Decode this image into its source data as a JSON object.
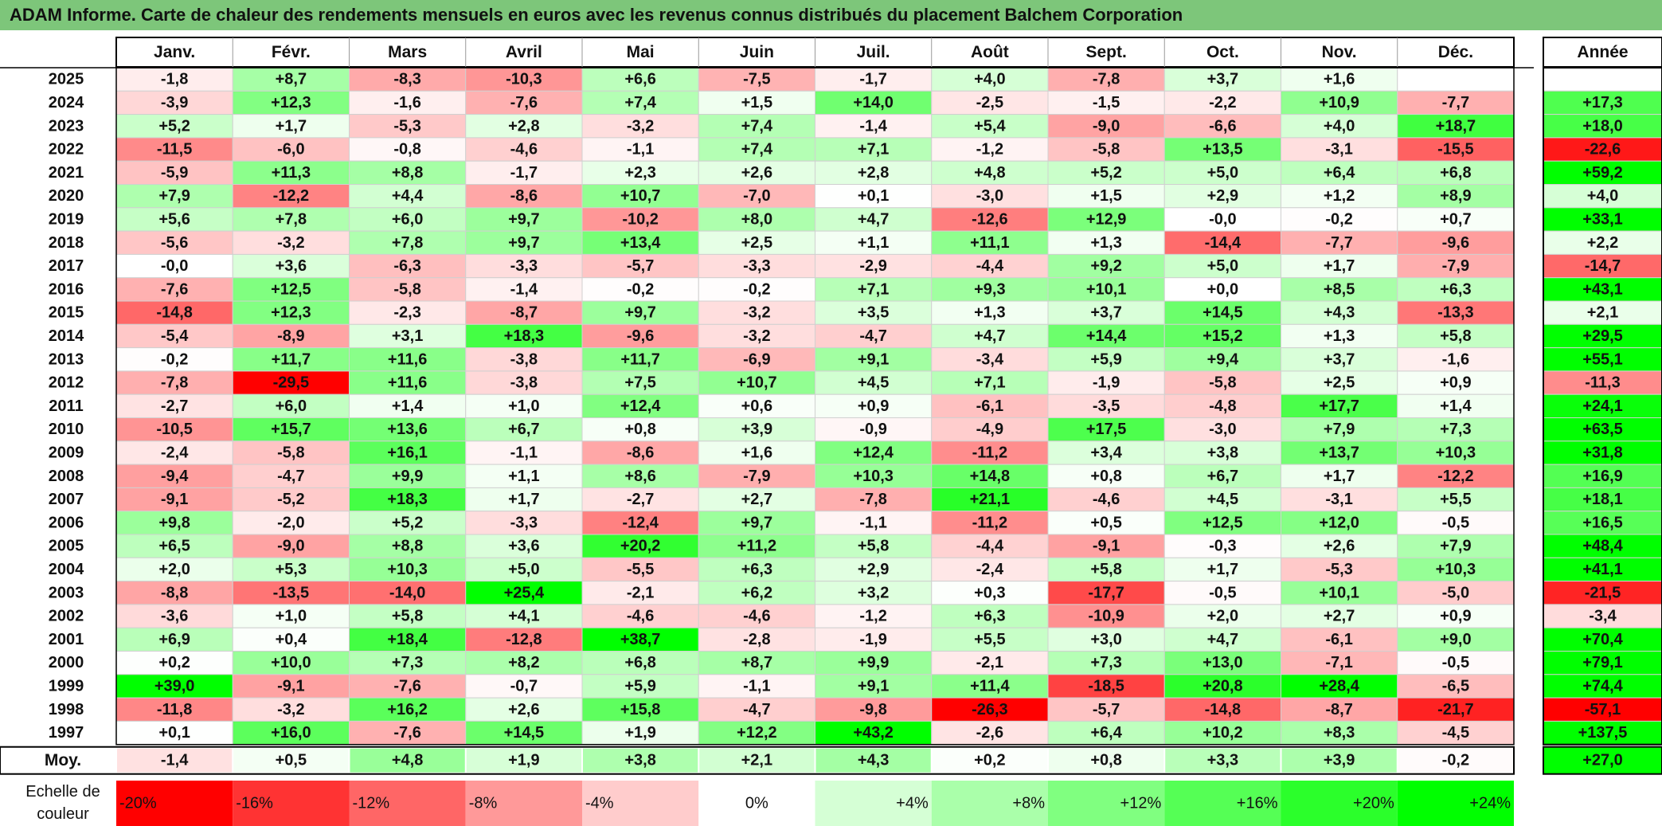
{
  "title": "ADAM Informe. Carte de chaleur des rendements mensuels en euros avec les revenus connus distribués du placement Balchem Corporation",
  "chart_data": {
    "type": "heatmap",
    "columns": [
      "Janv.",
      "Févr.",
      "Mars",
      "Avril",
      "Mai",
      "Juin",
      "Juil.",
      "Août",
      "Sept.",
      "Oct.",
      "Nov.",
      "Déc."
    ],
    "year_header": "Année",
    "rows": [
      {
        "year": "2025",
        "values": [
          "-1,8",
          "+8,7",
          "-8,3",
          "-10,3",
          "+6,6",
          "-7,5",
          "-1,7",
          "+4,0",
          "-7,8",
          "+3,7",
          "+1,6",
          ""
        ],
        "annual": ""
      },
      {
        "year": "2024",
        "values": [
          "-3,9",
          "+12,3",
          "-1,6",
          "-7,6",
          "+7,4",
          "+1,5",
          "+14,0",
          "-2,5",
          "-1,5",
          "-2,2",
          "+10,9",
          "-7,7"
        ],
        "annual": "+17,3"
      },
      {
        "year": "2023",
        "values": [
          "+5,2",
          "+1,7",
          "-5,3",
          "+2,8",
          "-3,2",
          "+7,4",
          "-1,4",
          "+5,4",
          "-9,0",
          "-6,6",
          "+4,0",
          "+18,7"
        ],
        "annual": "+18,0"
      },
      {
        "year": "2022",
        "values": [
          "-11,5",
          "-6,0",
          "-0,8",
          "-4,6",
          "-1,1",
          "+7,4",
          "+7,1",
          "-1,2",
          "-5,8",
          "+13,5",
          "-3,1",
          "-15,5"
        ],
        "annual": "-22,6"
      },
      {
        "year": "2021",
        "values": [
          "-5,9",
          "+11,3",
          "+8,8",
          "-1,7",
          "+2,3",
          "+2,6",
          "+2,8",
          "+4,8",
          "+5,2",
          "+5,0",
          "+6,4",
          "+6,8"
        ],
        "annual": "+59,2"
      },
      {
        "year": "2020",
        "values": [
          "+7,9",
          "-12,2",
          "+4,4",
          "-8,6",
          "+10,7",
          "-7,0",
          "+0,1",
          "-3,0",
          "+1,5",
          "+2,9",
          "+1,2",
          "+8,9"
        ],
        "annual": "+4,0"
      },
      {
        "year": "2019",
        "values": [
          "+5,6",
          "+7,8",
          "+6,0",
          "+9,7",
          "-10,2",
          "+8,0",
          "+4,7",
          "-12,6",
          "+12,9",
          "-0,0",
          "-0,2",
          "+0,7"
        ],
        "annual": "+33,1"
      },
      {
        "year": "2018",
        "values": [
          "-5,6",
          "-3,2",
          "+7,8",
          "+9,7",
          "+13,4",
          "+2,5",
          "+1,1",
          "+11,1",
          "+1,3",
          "-14,4",
          "-7,7",
          "-9,6"
        ],
        "annual": "+2,2"
      },
      {
        "year": "2017",
        "values": [
          "-0,0",
          "+3,6",
          "-6,3",
          "-3,3",
          "-5,7",
          "-3,3",
          "-2,9",
          "-4,4",
          "+9,2",
          "+5,0",
          "+1,7",
          "-7,9"
        ],
        "annual": "-14,7"
      },
      {
        "year": "2016",
        "values": [
          "-7,6",
          "+12,5",
          "-5,8",
          "-1,4",
          "-0,2",
          "-0,2",
          "+7,1",
          "+9,3",
          "+10,1",
          "+0,0",
          "+8,5",
          "+6,3"
        ],
        "annual": "+43,1"
      },
      {
        "year": "2015",
        "values": [
          "-14,8",
          "+12,3",
          "-2,3",
          "-8,7",
          "+9,7",
          "-3,2",
          "+3,5",
          "+1,3",
          "+3,7",
          "+14,5",
          "+4,3",
          "-13,3"
        ],
        "annual": "+2,1"
      },
      {
        "year": "2014",
        "values": [
          "-5,4",
          "-8,9",
          "+3,1",
          "+18,3",
          "-9,6",
          "-3,2",
          "-4,7",
          "+4,7",
          "+14,4",
          "+15,2",
          "+1,3",
          "+5,8"
        ],
        "annual": "+29,5"
      },
      {
        "year": "2013",
        "values": [
          "-0,2",
          "+11,7",
          "+11,6",
          "-3,8",
          "+11,7",
          "-6,9",
          "+9,1",
          "-3,4",
          "+5,9",
          "+9,4",
          "+3,7",
          "-1,6"
        ],
        "annual": "+55,1"
      },
      {
        "year": "2012",
        "values": [
          "-7,8",
          "-29,5",
          "+11,6",
          "-3,8",
          "+7,5",
          "+10,7",
          "+4,5",
          "+7,1",
          "-1,9",
          "-5,8",
          "+2,5",
          "+0,9"
        ],
        "annual": "-11,3"
      },
      {
        "year": "2011",
        "values": [
          "-2,7",
          "+6,0",
          "+1,4",
          "+1,0",
          "+12,4",
          "+0,6",
          "+0,9",
          "-6,1",
          "-3,5",
          "-4,8",
          "+17,7",
          "+1,4"
        ],
        "annual": "+24,1"
      },
      {
        "year": "2010",
        "values": [
          "-10,5",
          "+15,7",
          "+13,6",
          "+6,7",
          "+0,8",
          "+3,9",
          "-0,9",
          "-4,9",
          "+17,5",
          "-3,0",
          "+7,9",
          "+7,3"
        ],
        "annual": "+63,5"
      },
      {
        "year": "2009",
        "values": [
          "-2,4",
          "-5,8",
          "+16,1",
          "-1,1",
          "-8,6",
          "+1,6",
          "+12,4",
          "-11,2",
          "+3,4",
          "+3,8",
          "+13,7",
          "+10,3"
        ],
        "annual": "+31,8"
      },
      {
        "year": "2008",
        "values": [
          "-9,4",
          "-4,7",
          "+9,9",
          "+1,1",
          "+8,6",
          "-7,9",
          "+10,3",
          "+14,8",
          "+0,8",
          "+6,7",
          "+1,7",
          "-12,2"
        ],
        "annual": "+16,9"
      },
      {
        "year": "2007",
        "values": [
          "-9,1",
          "-5,2",
          "+18,3",
          "+1,7",
          "-2,7",
          "+2,7",
          "-7,8",
          "+21,1",
          "-4,6",
          "+4,5",
          "-3,1",
          "+5,5"
        ],
        "annual": "+18,1"
      },
      {
        "year": "2006",
        "values": [
          "+9,8",
          "-2,0",
          "+5,2",
          "-3,3",
          "-12,4",
          "+9,7",
          "-1,1",
          "-11,2",
          "+0,5",
          "+12,5",
          "+12,0",
          "-0,5"
        ],
        "annual": "+16,5"
      },
      {
        "year": "2005",
        "values": [
          "+6,5",
          "-9,0",
          "+8,8",
          "+3,6",
          "+20,2",
          "+11,2",
          "+5,8",
          "-4,4",
          "-9,1",
          "-0,3",
          "+2,6",
          "+7,9"
        ],
        "annual": "+48,4"
      },
      {
        "year": "2004",
        "values": [
          "+2,0",
          "+5,3",
          "+10,3",
          "+5,0",
          "-5,5",
          "+6,3",
          "+2,9",
          "-2,4",
          "+5,8",
          "+1,7",
          "-5,3",
          "+10,3"
        ],
        "annual": "+41,1"
      },
      {
        "year": "2003",
        "values": [
          "-8,8",
          "-13,5",
          "-14,0",
          "+25,4",
          "-2,1",
          "+6,2",
          "+3,2",
          "+0,3",
          "-17,7",
          "-0,5",
          "+10,1",
          "-5,0"
        ],
        "annual": "-21,5"
      },
      {
        "year": "2002",
        "values": [
          "-3,6",
          "+1,0",
          "+5,8",
          "+4,1",
          "-4,6",
          "-4,6",
          "-1,2",
          "+6,3",
          "-10,9",
          "+2,0",
          "+2,7",
          "+0,9"
        ],
        "annual": "-3,4"
      },
      {
        "year": "2001",
        "values": [
          "+6,9",
          "+0,4",
          "+18,4",
          "-12,8",
          "+38,7",
          "-2,8",
          "-1,9",
          "+5,5",
          "+3,0",
          "+4,7",
          "-6,1",
          "+9,0"
        ],
        "annual": "+70,4"
      },
      {
        "year": "2000",
        "values": [
          "+0,2",
          "+10,0",
          "+7,3",
          "+8,2",
          "+6,8",
          "+8,7",
          "+9,9",
          "-2,1",
          "+7,3",
          "+13,0",
          "-7,1",
          "-0,5"
        ],
        "annual": "+79,1"
      },
      {
        "year": "1999",
        "values": [
          "+39,0",
          "-9,1",
          "-7,6",
          "-0,7",
          "+5,9",
          "-1,1",
          "+9,1",
          "+11,4",
          "-18,5",
          "+20,8",
          "+28,4",
          "-6,5"
        ],
        "annual": "+74,4"
      },
      {
        "year": "1998",
        "values": [
          "-11,8",
          "-3,2",
          "+16,2",
          "+2,6",
          "+15,8",
          "-4,7",
          "-9,8",
          "-26,3",
          "-5,7",
          "-14,8",
          "-8,7",
          "-21,7"
        ],
        "annual": "-57,1"
      },
      {
        "year": "1997",
        "values": [
          "+0,1",
          "+16,0",
          "-7,6",
          "+14,5",
          "+1,9",
          "+12,2",
          "+43,2",
          "-2,6",
          "+6,4",
          "+10,2",
          "+8,3",
          "-4,5"
        ],
        "annual": "+137,5"
      }
    ],
    "average": {
      "label": "Moy.",
      "values": [
        "-1,4",
        "+0,5",
        "+4,8",
        "+1,9",
        "+3,8",
        "+2,1",
        "+4,3",
        "+0,2",
        "+0,8",
        "+3,3",
        "+3,9",
        "-0,2"
      ],
      "annual": "+27,0"
    },
    "legend": {
      "title_lines": [
        "Echelle de",
        "couleur"
      ],
      "stops": [
        {
          "label": "-20%",
          "value": -20
        },
        {
          "label": "-16%",
          "value": -16
        },
        {
          "label": "-12%",
          "value": -12
        },
        {
          "label": "-8%",
          "value": -8
        },
        {
          "label": "-4%",
          "value": -4
        },
        {
          "label": "0%",
          "value": 0
        },
        {
          "label": "+4%",
          "value": 4
        },
        {
          "label": "+8%",
          "value": 8
        },
        {
          "label": "+12%",
          "value": 12
        },
        {
          "label": "+16%",
          "value": 16
        },
        {
          "label": "+20%",
          "value": 20
        },
        {
          "label": "+24%",
          "value": 24
        }
      ]
    },
    "colors": {
      "negative": "#ff0000",
      "zero": "#ffffff",
      "positive": "#00ff00",
      "title_bar": "#7dc67a"
    }
  }
}
